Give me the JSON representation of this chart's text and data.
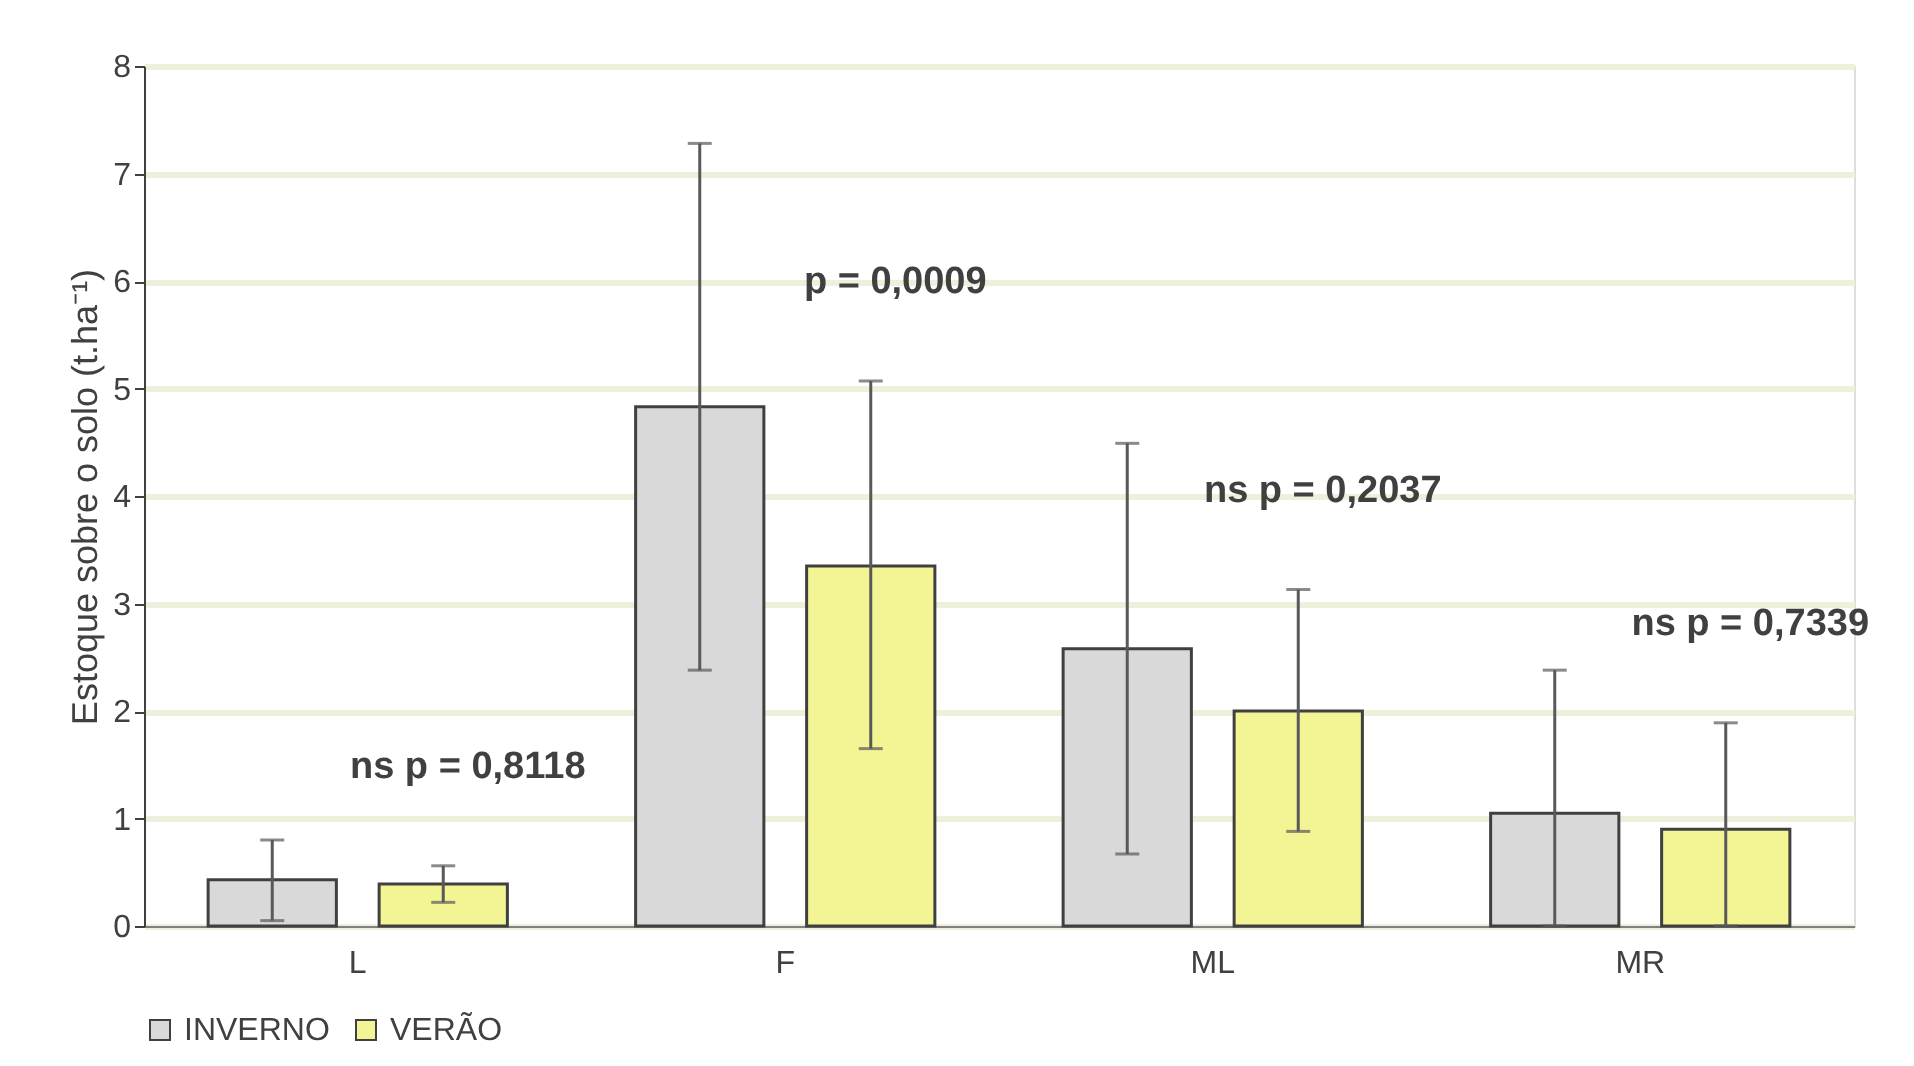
{
  "chart_data": {
    "type": "bar",
    "ylabel": "Estoque sobre o solo (t.ha⁻¹)",
    "categories": [
      "L",
      "F",
      "ML",
      "MR"
    ],
    "series": [
      {
        "name": "INVERNO",
        "color": "#d9d9d9",
        "values": [
          0.43,
          4.83,
          2.58,
          1.05
        ],
        "errors": [
          [
            0.05,
            0.8
          ],
          [
            2.38,
            7.28
          ],
          [
            0.67,
            4.49
          ],
          [
            0,
            2.38
          ]
        ]
      },
      {
        "name": "VERÃO",
        "color": "#f3f595",
        "values": [
          0.39,
          3.35,
          2.0,
          0.9
        ],
        "errors": [
          [
            0.22,
            0.56
          ],
          [
            1.65,
            5.07
          ],
          [
            0.88,
            3.13
          ],
          [
            0,
            1.89
          ]
        ]
      }
    ],
    "annotations": [
      "ns p = 0,8118",
      "p = 0,0009",
      "ns p = 0,2037",
      "ns p = 0,7339"
    ],
    "ylim": [
      0,
      8
    ],
    "yticks": [
      0,
      1,
      2,
      3,
      4,
      5,
      6,
      7,
      8
    ],
    "grid": "y",
    "legend": "bottom"
  }
}
